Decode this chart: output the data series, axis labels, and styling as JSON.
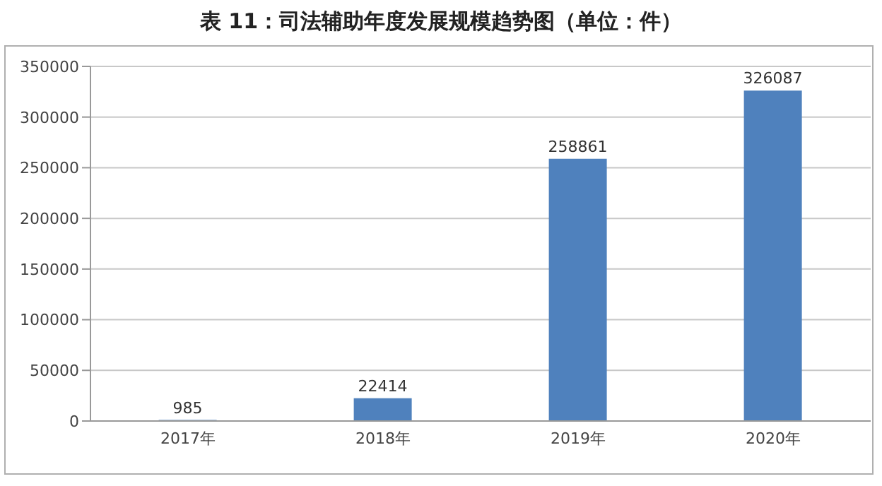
{
  "chart_data": {
    "type": "bar",
    "title": "表 11：司法辅助年度发展规模趋势图（单位：件）",
    "categories": [
      "2017年",
      "2018年",
      "2019年",
      "2020年"
    ],
    "values": [
      985,
      22414,
      258861,
      326087
    ],
    "color": "#4f81bd",
    "ylim": [
      0,
      350000
    ],
    "yticks": [
      0,
      50000,
      100000,
      150000,
      200000,
      250000,
      300000,
      350000
    ],
    "grid": "y",
    "data_labels": true,
    "legend": false
  }
}
